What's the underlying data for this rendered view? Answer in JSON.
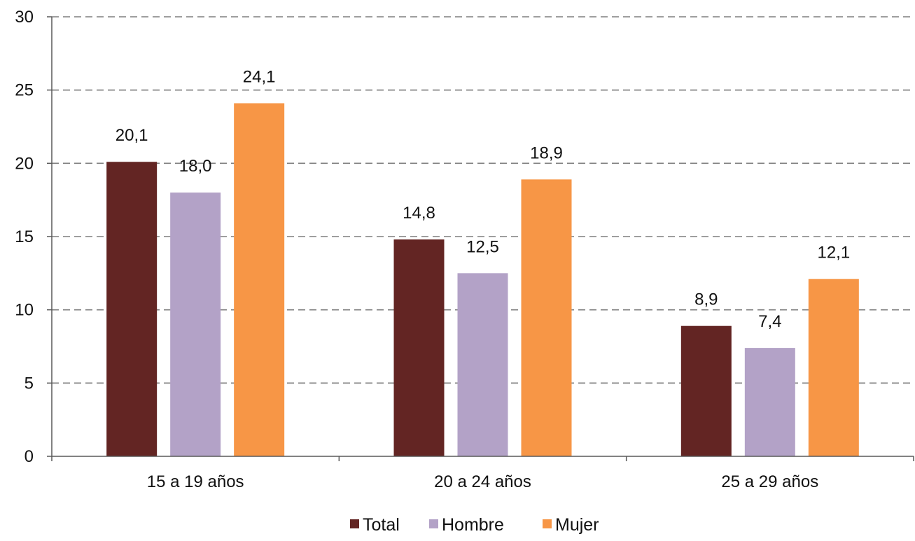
{
  "chart_data": {
    "type": "bar",
    "title": "",
    "xlabel": "",
    "ylabel": "",
    "ylim": [
      0,
      30
    ],
    "yticks": [
      0,
      5,
      10,
      15,
      20,
      25,
      30
    ],
    "grid": "horizontal-dashed",
    "legend_position": "bottom",
    "categories": [
      "15 a 19 años",
      "20 a 24 años",
      "25 a 29 años"
    ],
    "series": [
      {
        "name": "Total",
        "color": "#632523",
        "values": [
          20.1,
          14.8,
          8.9
        ],
        "labels": [
          "20,1",
          "14,8",
          "8,9"
        ]
      },
      {
        "name": "Hombre",
        "color": "#B3A2C7",
        "values": [
          18.0,
          12.5,
          7.4
        ],
        "labels": [
          "18,0",
          "12,5",
          "7,4"
        ]
      },
      {
        "name": "Mujer",
        "color": "#F79646",
        "values": [
          24.1,
          18.9,
          12.1
        ],
        "labels": [
          "24,1",
          "18,9",
          "12,1"
        ]
      }
    ]
  }
}
